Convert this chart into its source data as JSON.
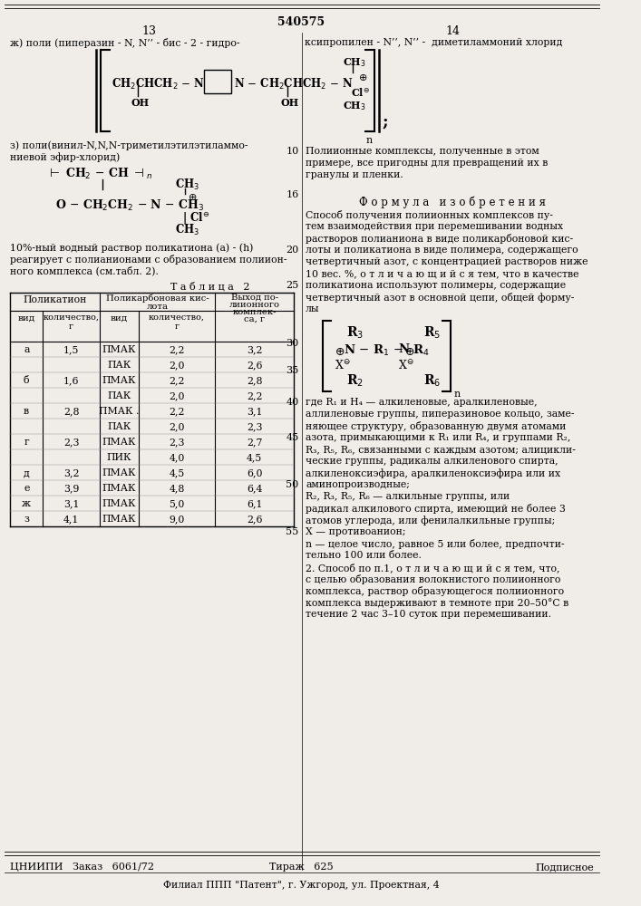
{
  "bg_color": "#f0ede8",
  "header_number": "540575",
  "page_left": "13",
  "page_right": "14",
  "top_line1_left": "ж) поли (пиперазин - N, N’’ - бис - 2 - гидро-",
  "top_line1_right": "ксипропилен - N’’, N’’ -  диметиламмоний хлорид",
  "section_z_title": "з) поли(винил-N,N,N-триметилэтилэтиламмо-",
  "section_z_title2": "ниевой эфир-хлорид)",
  "text_10pct": "10%-ный водный раствор поликатиона (а) - (h)",
  "text_react": "реагирует с полианионами с образованием полиион-",
  "text_complex": "ного комплекса (см.табл. 2).",
  "table_title": "Т а б л и ц а   2",
  "rows": [
    {
      "cat": "а",
      "cat_amt": "1,5",
      "acid": "ПМАК",
      "acid_amt": "2,2",
      "yield": "3,2"
    },
    {
      "cat": "",
      "cat_amt": "",
      "acid": "ПАК",
      "acid_amt": "2,0",
      "yield": "2,6"
    },
    {
      "cat": "б",
      "cat_amt": "1,6",
      "acid": "ПМАК",
      "acid_amt": "2,2",
      "yield": "2,8"
    },
    {
      "cat": "",
      "cat_amt": "",
      "acid": "ПАК",
      "acid_amt": "2,0",
      "yield": "2,2"
    },
    {
      "cat": "в",
      "cat_amt": "2,8",
      "acid": "ПМАК .",
      "acid_amt": "2,2",
      "yield": "3,1"
    },
    {
      "cat": "",
      "cat_amt": "",
      "acid": "ПАК",
      "acid_amt": "2,0",
      "yield": "2,3"
    },
    {
      "cat": "г",
      "cat_amt": "2,3",
      "acid": "ПМАК",
      "acid_amt": "2,3",
      "yield": "2,7"
    },
    {
      "cat": "",
      "cat_amt": "",
      "acid": "ПИК",
      "acid_amt": "4,0",
      "yield": "4,5"
    },
    {
      "cat": "д",
      "cat_amt": "3,2",
      "acid": "ПМАК",
      "acid_amt": "4,5",
      "yield": "6,0"
    },
    {
      "cat": "е",
      "cat_amt": "3,9",
      "acid": "ПМАК",
      "acid_amt": "4,8",
      "yield": "6,4"
    },
    {
      "cat": "ж",
      "cat_amt": "3,1",
      "acid": "ПМАК",
      "acid_amt": "5,0",
      "yield": "6,1"
    },
    {
      "cat": "з",
      "cat_amt": "4,1",
      "acid": "ПМАК",
      "acid_amt": "9,0",
      "yield": "2,6"
    }
  ],
  "right_text_10": "Полиионные комплексы, полученные в этом",
  "right_text_10b": "примере, все пригодны для превращений их в",
  "right_text_10c": "гранулы и пленки.",
  "formula_header": "Ф о р м у л а   и з о б р е т е н и я",
  "formula_p1": "Способ получения полиионных комплексов пу-",
  "formula_p2": "тем взаимодействия при перемешивании водных",
  "formula_p3": "растворов полианиона в виде поликарбоновой кис-",
  "formula_p4": "лоты и поликатиона в виде полимера, содержащего",
  "formula_p5": "четвертичный азот, с концентрацией растворов ниже",
  "formula_p6": "10 вес. %, о т л и ч а ю щ и й с я тем, что в качестве",
  "formula_p7": "поликатиона используют полимеры, содержащие",
  "formula_p8": "четвертичный азот в основной цепи, общей форму-",
  "formula_p8b": "лы",
  "formula_p9": "где R₁ и H₄ — алкиленовые, аралкиленовые,",
  "formula_p10": "аллиленовые группы, пиперазиновое кольцо, заме-",
  "formula_p11": "няющее структуру, образованную двумя атомами",
  "formula_p12": "азота, примыкающими к R₁ или R₄, и группами R₂,",
  "formula_p13": "R₃, R₅, R₆, связанными с каждым азотом; алицикли-",
  "formula_p14": "ческие группы, радикалы алкиленового спирта,",
  "formula_p15": "алкиленоксиэфира, аралкиленоксиэфира или их",
  "formula_p16": "аминопроизводные;",
  "formula_p17": "R₂, R₃, R₅, R₆ — алкильные группы, или",
  "formula_p18": "радикал алкилового спирта, имеющий не более 3",
  "formula_p19": "атомов углерода, или фенилалкильные группы;",
  "formula_p20": "X — противоанион;",
  "formula_p21": "n — целое число, равное 5 или более, предпочти-",
  "formula_p22": "тельно 100 или более.",
  "formula_p23": "2. Способ по п.1, о т л и ч а ю щ и й с я тем, что,",
  "formula_p24": "с целью образования волокнистого полиионного",
  "formula_p25": "комплекса, раствор образующегося полиионного",
  "formula_p26": "комплекса выдерживают в темноте при 20–50°С в",
  "formula_p27": "течение 2 час 3–10 суток при перемешивании.",
  "footer_left": "ЦНИИПИ   Заказ   6061/72",
  "footer_center": "Тираж   625",
  "footer_right": "Подписное",
  "footer_bottom": "Филиал ППП \"Патент\", г. Ужгород, ул. Проектная, 4"
}
